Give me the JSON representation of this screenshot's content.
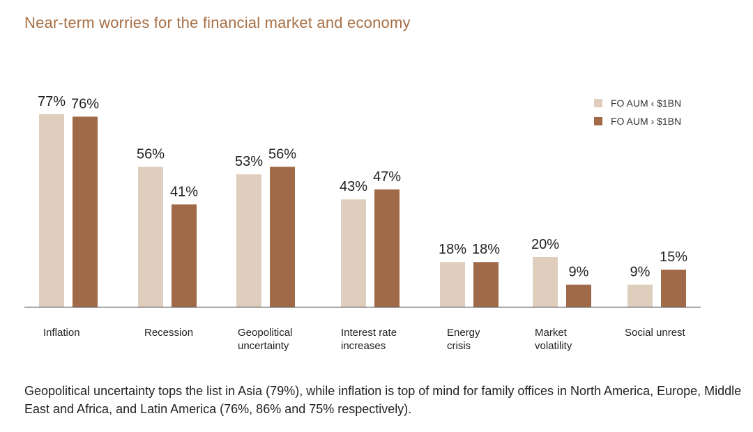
{
  "title": "Near-term worries for the financial market and economy",
  "caption": "Geopolitical uncertainty tops the list in Asia (79%), while inflation is top of mind for family offices in North America, Europe, Middle East and Africa, and Latin America (76%, 86% and 75% respectively).",
  "colors": {
    "series1": "#dfcebd",
    "series2": "#a06a48",
    "axis": "#555555",
    "title": "#a87046"
  },
  "chart_data": {
    "type": "bar",
    "title": "Near-term worries for the financial market and economy",
    "categories": [
      "Inflation",
      "Recession",
      "Geopolitical uncertainty",
      "Interest rate increases",
      "Energy crisis",
      "Market volatility",
      "Social unrest"
    ],
    "category_lines": [
      [
        "Inflation"
      ],
      [
        "Recession"
      ],
      [
        "Geopolitical",
        "uncertainty"
      ],
      [
        "Interest rate",
        "increases"
      ],
      [
        "Energy",
        "crisis"
      ],
      [
        "Market",
        "volatility"
      ],
      [
        "Social unrest"
      ]
    ],
    "series": [
      {
        "name": "FO AUM ‹ $1BN",
        "values": [
          77,
          56,
          53,
          43,
          18,
          20,
          9
        ]
      },
      {
        "name": "FO AUM › $1BN",
        "values": [
          76,
          41,
          56,
          47,
          18,
          9,
          15
        ]
      }
    ],
    "value_suffix": "%",
    "ylim": [
      0,
      100
    ],
    "grid": false,
    "legend_position": "top-right"
  }
}
